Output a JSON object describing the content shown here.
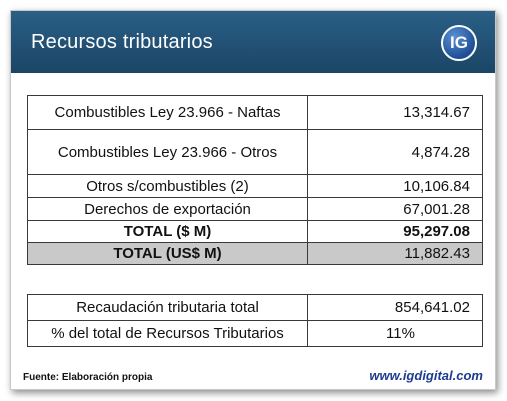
{
  "header": {
    "title": "Recursos tributarios",
    "logo_text": "IG",
    "background_color": "#1f4b6e"
  },
  "main_table": {
    "rows": [
      {
        "label": "Combustibles Ley 23.966 - Naftas",
        "value": "13,314.67"
      },
      {
        "label": "Combustibles Ley 23.966 - Otros",
        "value": "4,874.28"
      },
      {
        "label": "Otros s/combustibles (2)",
        "value": "10,106.84"
      },
      {
        "label": "Derechos de exportación",
        "value": "67,001.28"
      },
      {
        "label": "TOTAL ($ M)",
        "value": "95,297.08"
      },
      {
        "label": "TOTAL (US$ M)",
        "value": "11,882.43"
      }
    ]
  },
  "summary_table": {
    "rows": [
      {
        "label": "Recaudación tributaria total",
        "value": "854,641.02"
      },
      {
        "label": "% del total de Recursos Tributarios",
        "value": "11%"
      }
    ]
  },
  "footer": {
    "source": "Fuente: Elaboración propia",
    "website": "www.igdigital.com"
  }
}
